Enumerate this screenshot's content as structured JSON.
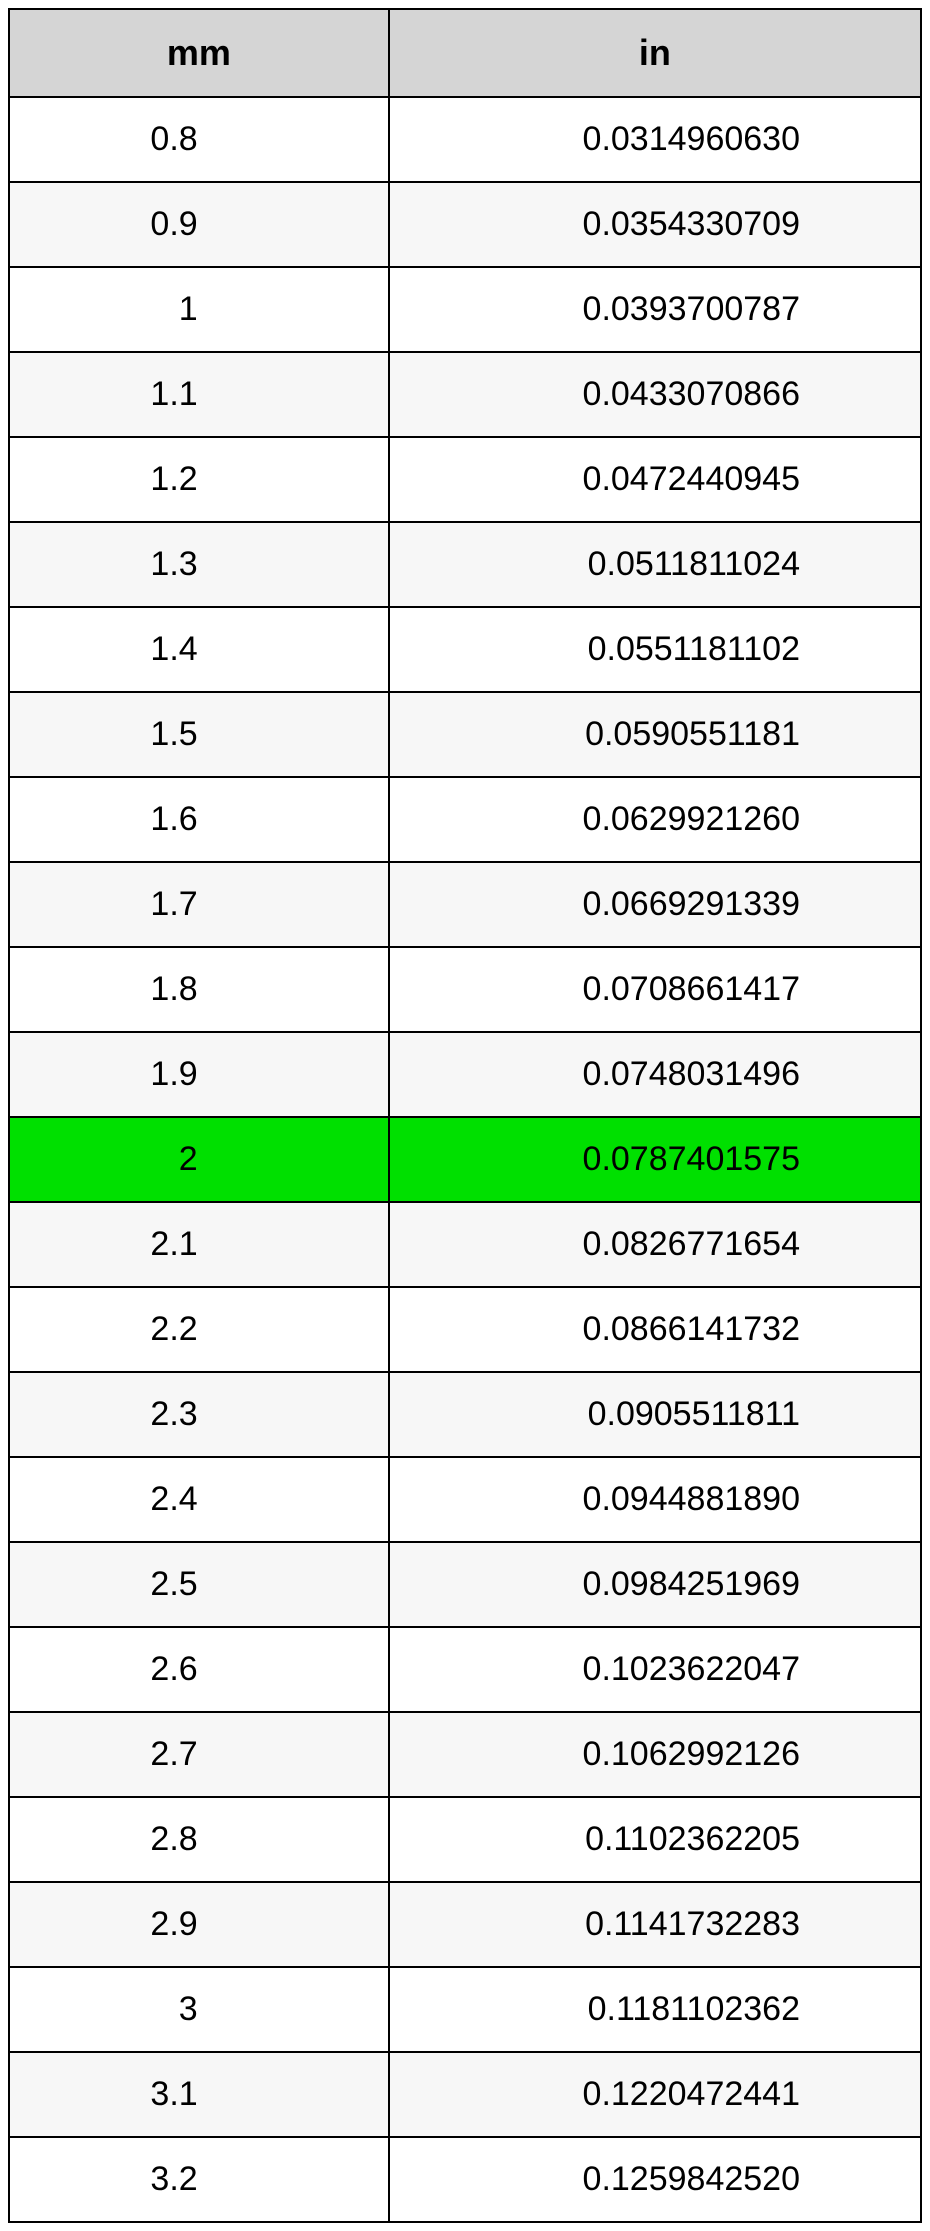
{
  "table": {
    "columns": [
      "mm",
      "in"
    ],
    "header_bg": "#d5d5d5",
    "highlight_bg": "#00e000",
    "row_bg_even": "#ffffff",
    "row_bg_odd": "#f7f7f7",
    "border_color": "#000000",
    "header_fontsize": 36,
    "cell_fontsize": 34,
    "highlight_index": 12,
    "rows": [
      {
        "mm": "0.8",
        "in": "0.0314960630"
      },
      {
        "mm": "0.9",
        "in": "0.0354330709"
      },
      {
        "mm": "1",
        "in": "0.0393700787"
      },
      {
        "mm": "1.1",
        "in": "0.0433070866"
      },
      {
        "mm": "1.2",
        "in": "0.0472440945"
      },
      {
        "mm": "1.3",
        "in": "0.0511811024"
      },
      {
        "mm": "1.4",
        "in": "0.0551181102"
      },
      {
        "mm": "1.5",
        "in": "0.0590551181"
      },
      {
        "mm": "1.6",
        "in": "0.0629921260"
      },
      {
        "mm": "1.7",
        "in": "0.0669291339"
      },
      {
        "mm": "1.8",
        "in": "0.0708661417"
      },
      {
        "mm": "1.9",
        "in": "0.0748031496"
      },
      {
        "mm": "2",
        "in": "0.0787401575"
      },
      {
        "mm": "2.1",
        "in": "0.0826771654"
      },
      {
        "mm": "2.2",
        "in": "0.0866141732"
      },
      {
        "mm": "2.3",
        "in": "0.0905511811"
      },
      {
        "mm": "2.4",
        "in": "0.0944881890"
      },
      {
        "mm": "2.5",
        "in": "0.0984251969"
      },
      {
        "mm": "2.6",
        "in": "0.1023622047"
      },
      {
        "mm": "2.7",
        "in": "0.1062992126"
      },
      {
        "mm": "2.8",
        "in": "0.1102362205"
      },
      {
        "mm": "2.9",
        "in": "0.1141732283"
      },
      {
        "mm": "3",
        "in": "0.1181102362"
      },
      {
        "mm": "3.1",
        "in": "0.1220472441"
      },
      {
        "mm": "3.2",
        "in": "0.1259842520"
      }
    ]
  }
}
